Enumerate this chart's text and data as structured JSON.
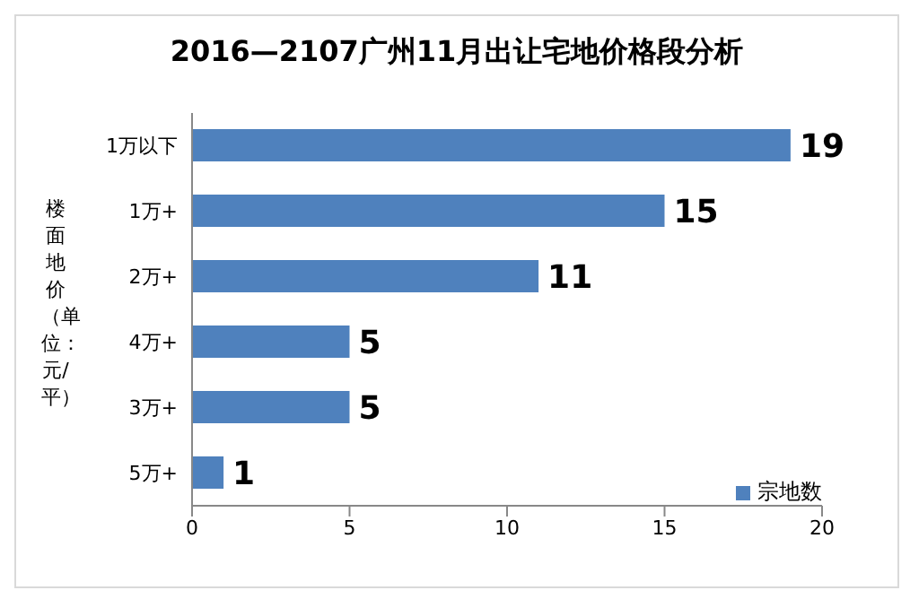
{
  "chart_data": {
    "type": "bar",
    "orientation": "horizontal",
    "title": "2016—2107广州11月出让宅地价格段分析",
    "ylabel": "楼面地价（单位：元/平）",
    "categories": [
      "1万以下",
      "1万+",
      "2万+",
      "4万+",
      "3万+",
      "5万+"
    ],
    "series": [
      {
        "name": "宗地数",
        "color": "#4f81bd",
        "values": [
          19,
          15,
          11,
          5,
          5,
          1
        ]
      }
    ],
    "xlim": [
      0,
      20
    ],
    "xticks": [
      0,
      5,
      10,
      15,
      20
    ],
    "data_labels": true,
    "legend": "bottom right",
    "grid": false
  }
}
